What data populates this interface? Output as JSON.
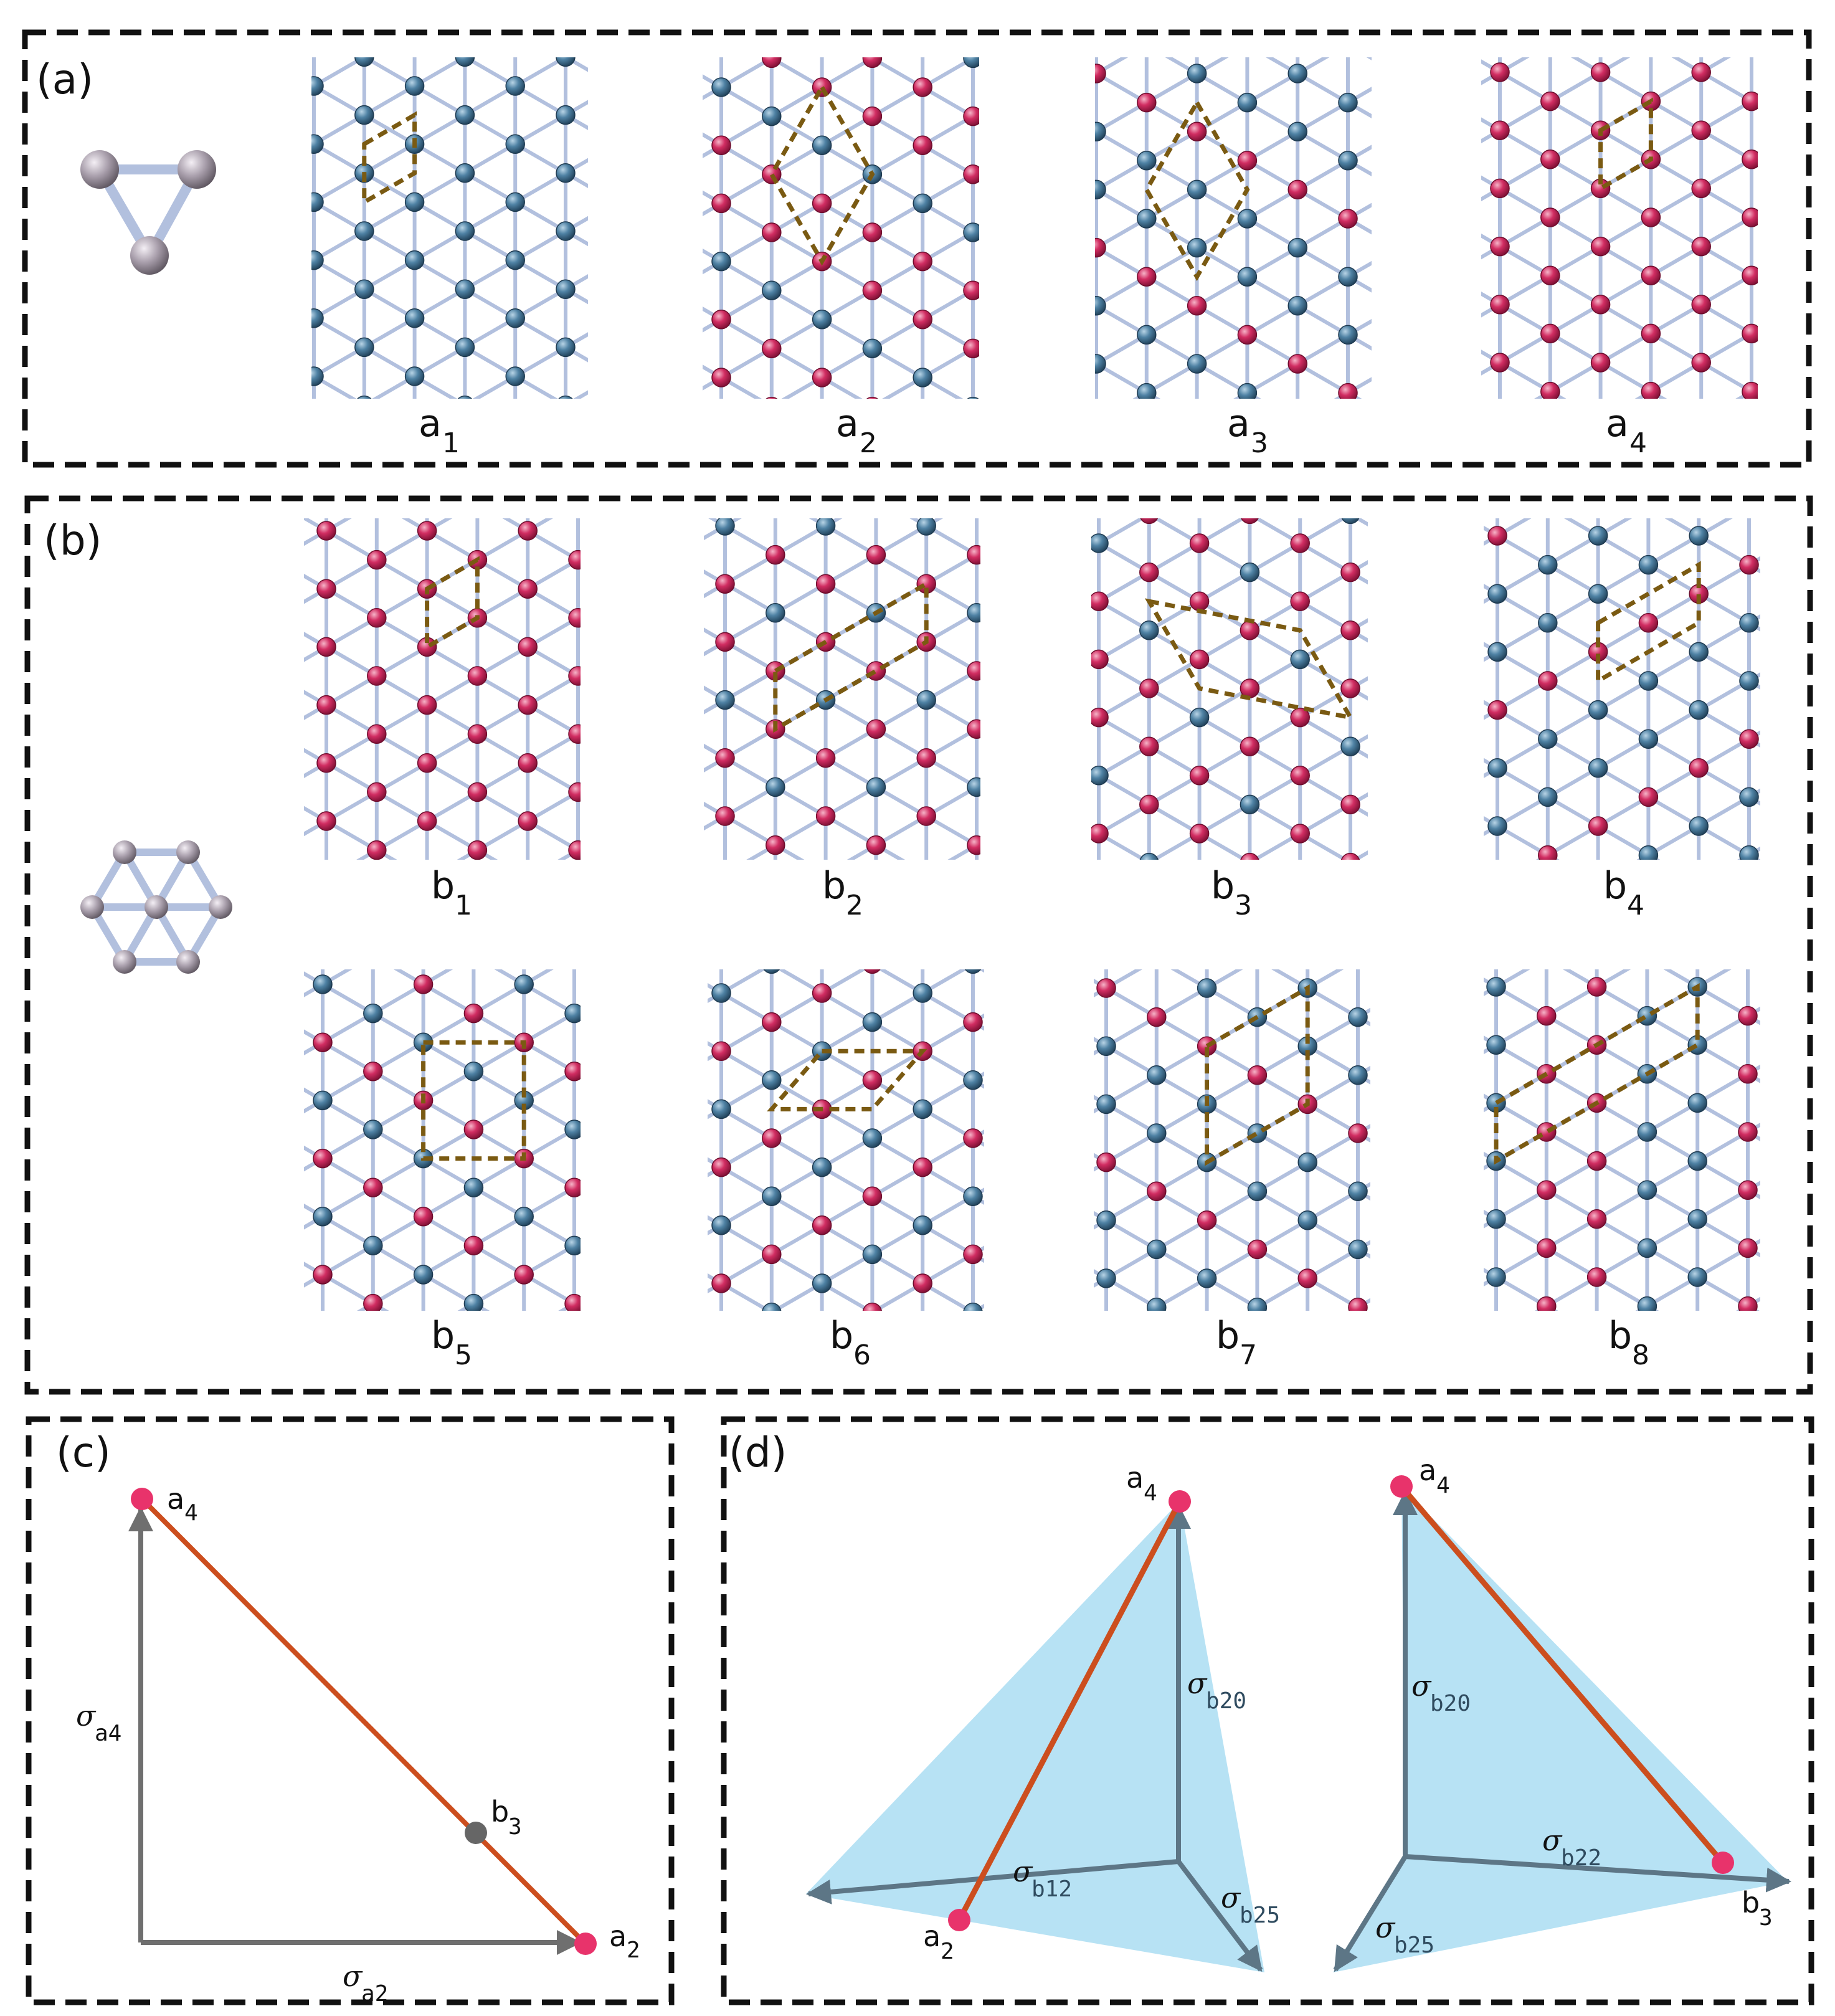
{
  "panels": {
    "a": {
      "label": "(a)",
      "tiles": [
        {
          "base": "a",
          "sub": "1"
        },
        {
          "base": "a",
          "sub": "2"
        },
        {
          "base": "a",
          "sub": "3"
        },
        {
          "base": "a",
          "sub": "4"
        }
      ]
    },
    "b": {
      "label": "(b)",
      "tiles": [
        {
          "base": "b",
          "sub": "1"
        },
        {
          "base": "b",
          "sub": "2"
        },
        {
          "base": "b",
          "sub": "3"
        },
        {
          "base": "b",
          "sub": "4"
        },
        {
          "base": "b",
          "sub": "5"
        },
        {
          "base": "b",
          "sub": "6"
        },
        {
          "base": "b",
          "sub": "7"
        },
        {
          "base": "b",
          "sub": "8"
        }
      ]
    },
    "c": {
      "label": "(c)",
      "points": [
        {
          "base": "a",
          "sub": "4"
        },
        {
          "base": "b",
          "sub": "3"
        },
        {
          "base": "a",
          "sub": "2"
        }
      ],
      "axes": [
        {
          "sym": "σ",
          "sub": "a4"
        },
        {
          "sym": "σ",
          "sub": "a2"
        }
      ]
    },
    "d": {
      "label": "(d)",
      "left": {
        "points": [
          {
            "base": "a",
            "sub": "4"
          },
          {
            "base": "a",
            "sub": "2"
          }
        ],
        "axes": [
          {
            "sym": "σ",
            "sub": "b20"
          },
          {
            "sym": "σ",
            "sub": "b12"
          },
          {
            "sym": "σ",
            "sub": "b25"
          }
        ]
      },
      "right": {
        "points": [
          {
            "base": "a",
            "sub": "4"
          },
          {
            "base": "b",
            "sub": "3"
          }
        ],
        "axes": [
          {
            "sym": "σ",
            "sub": "b20"
          },
          {
            "sym": "σ",
            "sub": "b22"
          },
          {
            "sym": "σ",
            "sub": "b25"
          }
        ]
      }
    }
  },
  "colors": {
    "atom_blue": "#3f6f8f",
    "atom_red": "#c8245a",
    "bond": "#b2c0de",
    "cell_outline": "#7a5a12",
    "trajectory": "#cc4e1e",
    "point_pink": "#e8336b",
    "point_gray": "#666666",
    "axis_gray": "#6f6f6f",
    "axis_dark": "#5d7686",
    "simplex_fill": "#b7e2f4",
    "motif_atom": "#a99fac"
  }
}
